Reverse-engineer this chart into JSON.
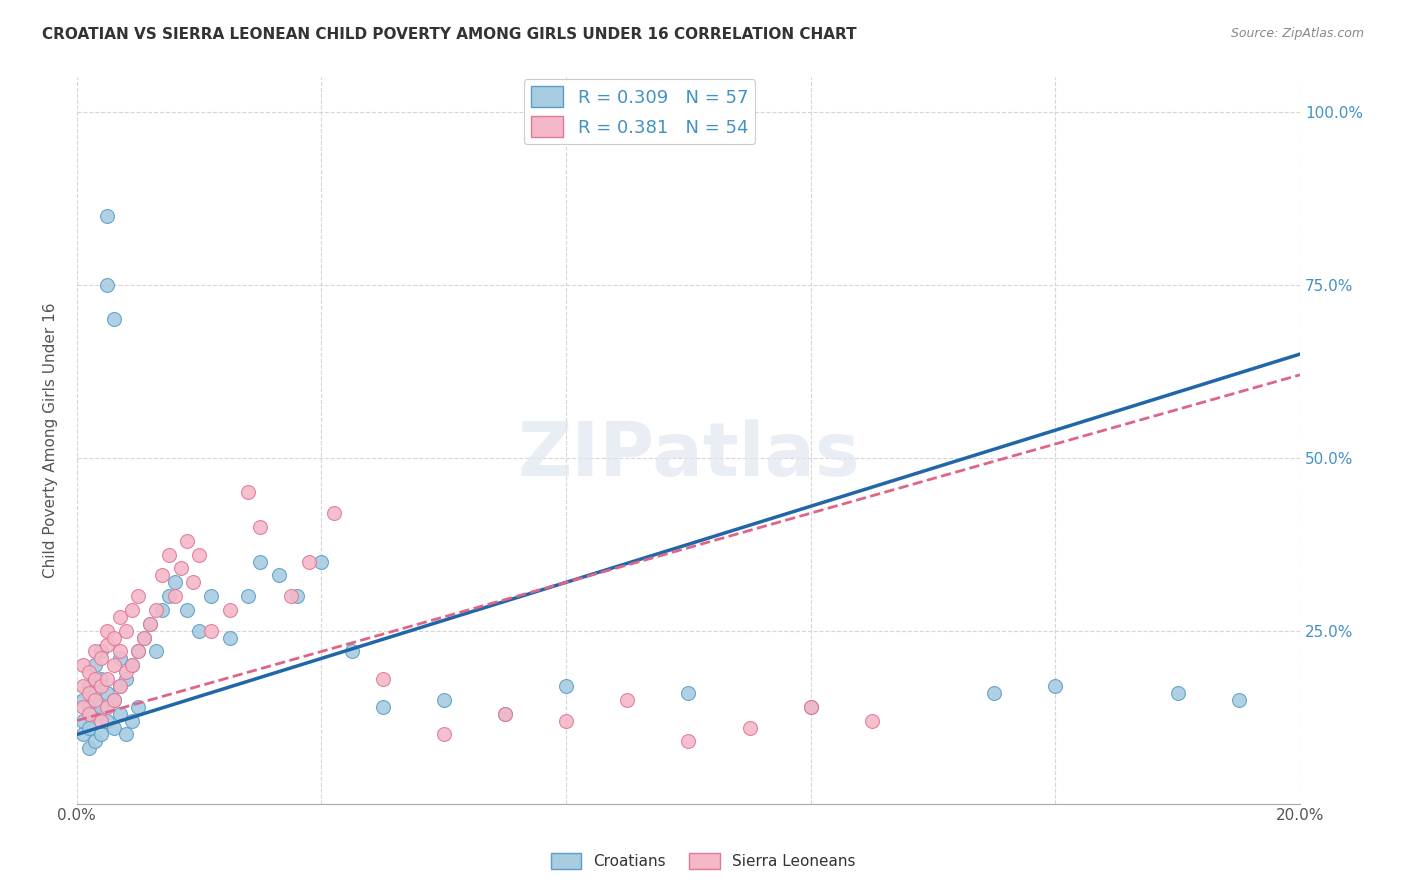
{
  "title": "CROATIAN VS SIERRA LEONEAN CHILD POVERTY AMONG GIRLS UNDER 16 CORRELATION CHART",
  "source": "Source: ZipAtlas.com",
  "ylabel": "Child Poverty Among Girls Under 16",
  "xlim": [
    0.0,
    0.2
  ],
  "ylim": [
    0.0,
    1.05
  ],
  "croatians_R": 0.309,
  "croatians_N": 57,
  "sierraleoneans_R": 0.381,
  "sierraleoneans_N": 54,
  "blue_color": "#a8cce0",
  "pink_color": "#f4b8c8",
  "blue_edge_color": "#5b9ec9",
  "pink_edge_color": "#e07898",
  "blue_line_color": "#2266aa",
  "pink_line_color": "#dd6688",
  "background_color": "#ffffff",
  "grid_color": "#cccccc",
  "title_fontsize": 11,
  "tick_label_color_right": "#4292c6",
  "croatians_x": [
    0.001,
    0.001,
    0.001,
    0.002,
    0.002,
    0.002,
    0.002,
    0.003,
    0.003,
    0.003,
    0.003,
    0.004,
    0.004,
    0.004,
    0.004,
    0.005,
    0.005,
    0.005,
    0.005,
    0.006,
    0.006,
    0.006,
    0.007,
    0.007,
    0.007,
    0.008,
    0.008,
    0.009,
    0.009,
    0.01,
    0.01,
    0.011,
    0.012,
    0.013,
    0.014,
    0.015,
    0.016,
    0.018,
    0.02,
    0.022,
    0.025,
    0.028,
    0.03,
    0.033,
    0.036,
    0.04,
    0.045,
    0.05,
    0.06,
    0.07,
    0.08,
    0.1,
    0.12,
    0.15,
    0.16,
    0.18,
    0.19
  ],
  "croatians_y": [
    0.1,
    0.12,
    0.15,
    0.08,
    0.11,
    0.14,
    0.17,
    0.09,
    0.13,
    0.16,
    0.2,
    0.1,
    0.14,
    0.18,
    0.22,
    0.85,
    0.12,
    0.16,
    0.75,
    0.11,
    0.15,
    0.7,
    0.13,
    0.17,
    0.21,
    0.1,
    0.18,
    0.12,
    0.2,
    0.14,
    0.22,
    0.24,
    0.26,
    0.22,
    0.28,
    0.3,
    0.32,
    0.28,
    0.25,
    0.3,
    0.24,
    0.3,
    0.35,
    0.33,
    0.3,
    0.35,
    0.22,
    0.14,
    0.15,
    0.13,
    0.17,
    0.16,
    0.14,
    0.16,
    0.17,
    0.16,
    0.15
  ],
  "sierraleoneans_x": [
    0.001,
    0.001,
    0.001,
    0.002,
    0.002,
    0.002,
    0.003,
    0.003,
    0.003,
    0.004,
    0.004,
    0.004,
    0.005,
    0.005,
    0.005,
    0.005,
    0.006,
    0.006,
    0.006,
    0.007,
    0.007,
    0.007,
    0.008,
    0.008,
    0.009,
    0.009,
    0.01,
    0.01,
    0.011,
    0.012,
    0.013,
    0.014,
    0.015,
    0.016,
    0.017,
    0.018,
    0.019,
    0.02,
    0.022,
    0.025,
    0.028,
    0.03,
    0.035,
    0.038,
    0.042,
    0.05,
    0.06,
    0.07,
    0.08,
    0.09,
    0.1,
    0.11,
    0.12,
    0.13
  ],
  "sierraleoneans_y": [
    0.14,
    0.17,
    0.2,
    0.13,
    0.16,
    0.19,
    0.15,
    0.18,
    0.22,
    0.12,
    0.17,
    0.21,
    0.14,
    0.18,
    0.23,
    0.25,
    0.15,
    0.2,
    0.24,
    0.17,
    0.22,
    0.27,
    0.19,
    0.25,
    0.2,
    0.28,
    0.22,
    0.3,
    0.24,
    0.26,
    0.28,
    0.33,
    0.36,
    0.3,
    0.34,
    0.38,
    0.32,
    0.36,
    0.25,
    0.28,
    0.45,
    0.4,
    0.3,
    0.35,
    0.42,
    0.18,
    0.1,
    0.13,
    0.12,
    0.15,
    0.09,
    0.11,
    0.14,
    0.12
  ]
}
